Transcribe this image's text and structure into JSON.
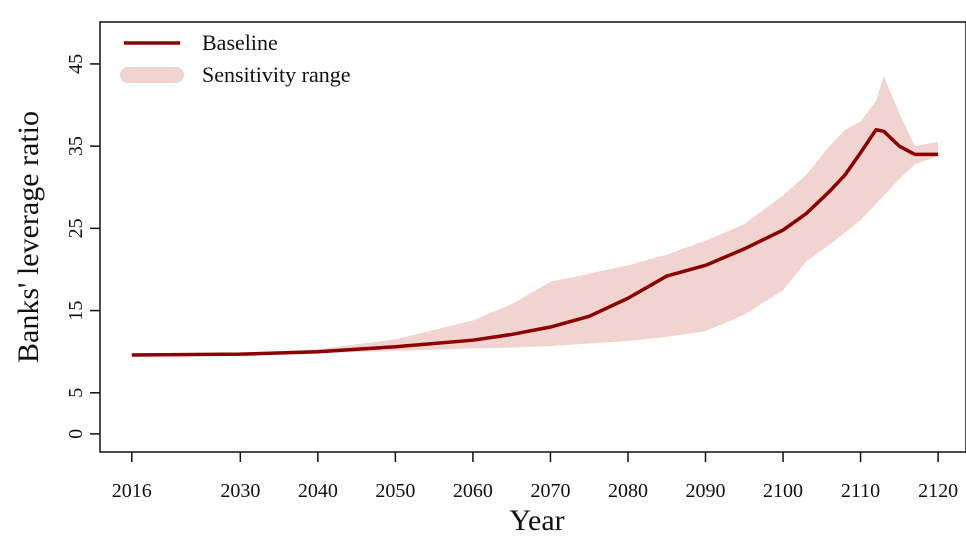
{
  "chart_data": {
    "type": "line",
    "x_label": "Year",
    "y_label": "Banks' leverage ratio",
    "x": [
      2016,
      2030,
      2040,
      2050,
      2060,
      2065,
      2070,
      2075,
      2080,
      2085,
      2090,
      2095,
      2100,
      2103,
      2106,
      2108,
      2110,
      2112,
      2113,
      2115,
      2117,
      2120
    ],
    "series": [
      {
        "name": "Baseline",
        "color": "#8b0000",
        "values": [
          9.6,
          9.7,
          10.0,
          10.6,
          11.4,
          12.1,
          13.0,
          14.3,
          16.5,
          19.2,
          20.5,
          22.5,
          24.8,
          26.8,
          29.5,
          31.5,
          34.2,
          37.0,
          36.8,
          35.0,
          34.0,
          34.0
        ]
      }
    ],
    "band": {
      "name": "Sensitivity range",
      "color": "#f1d3cf",
      "lower": [
        9.6,
        9.6,
        9.8,
        10.1,
        10.4,
        10.5,
        10.7,
        11.0,
        11.3,
        11.8,
        12.5,
        14.5,
        17.5,
        21.0,
        23.0,
        24.5,
        26.0,
        28.0,
        29.0,
        31.0,
        32.8,
        33.8
      ],
      "upper": [
        9.6,
        9.8,
        10.3,
        11.5,
        13.8,
        15.8,
        18.5,
        19.5,
        20.5,
        21.8,
        23.5,
        25.5,
        29.0,
        31.5,
        35.0,
        37.0,
        38.0,
        40.5,
        43.5,
        39.0,
        35.0,
        35.5
      ]
    },
    "xlim": [
      2011.9,
      2123.6
    ],
    "ylim": [
      -2.2,
      50.1
    ],
    "xticks": [
      2016,
      2030,
      2040,
      2050,
      2060,
      2070,
      2080,
      2090,
      2100,
      2110,
      2120
    ],
    "yticks": [
      0,
      5,
      15,
      25,
      35,
      45
    ],
    "legend": "top-left"
  }
}
